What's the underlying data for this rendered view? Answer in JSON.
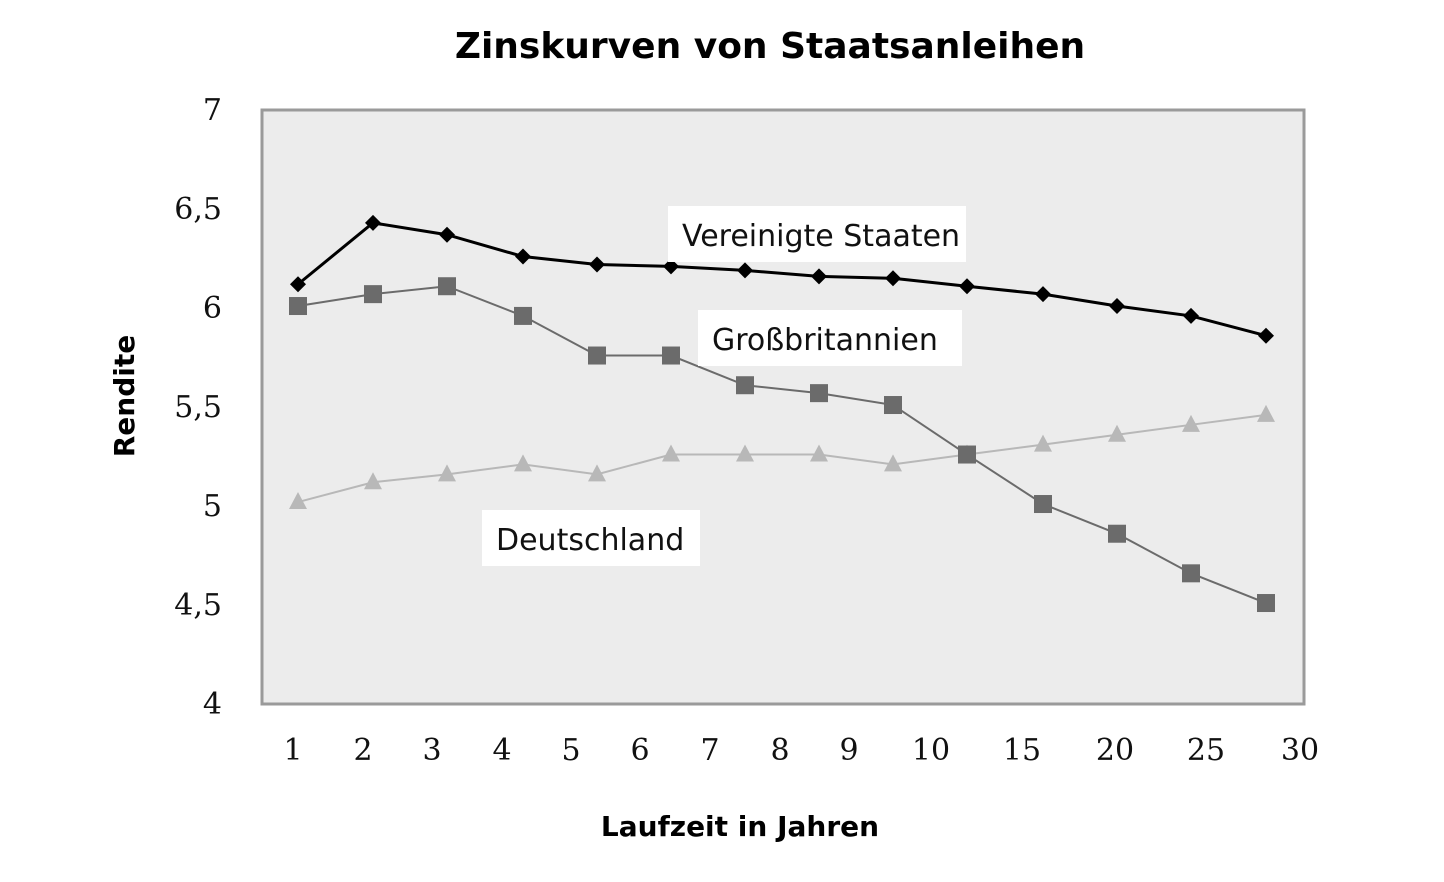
{
  "chart_data": {
    "type": "line",
    "title": "Zinskurven von Staatsanleihen",
    "xlabel": "Laufzeit in Jahren",
    "ylabel": "Rendite",
    "categories": [
      "1",
      "2",
      "3",
      "4",
      "5",
      "6",
      "7",
      "8",
      "9",
      "10",
      "15",
      "20",
      "25",
      "30"
    ],
    "y_ticks": [
      "4",
      "4,5",
      "5",
      "5,5",
      "6",
      "6,5",
      "7"
    ],
    "ylim": [
      4,
      7
    ],
    "grid": false,
    "series": [
      {
        "name": "Vereinigte Staaten",
        "marker": "diamond",
        "color": "#000000",
        "values": [
          6.12,
          6.43,
          6.37,
          6.26,
          6.22,
          6.21,
          6.19,
          6.16,
          6.15,
          6.11,
          6.07,
          6.01,
          5.96,
          5.86
        ]
      },
      {
        "name": "Großbritannien",
        "marker": "square",
        "color": "#6b6b6b",
        "values": [
          6.01,
          6.07,
          6.11,
          5.96,
          5.76,
          5.76,
          5.61,
          5.57,
          5.51,
          5.26,
          5.01,
          4.86,
          4.66,
          4.51
        ]
      },
      {
        "name": "Deutschland",
        "marker": "triangle",
        "color": "#b8b8b8",
        "values": [
          5.02,
          5.12,
          5.16,
          5.21,
          5.16,
          5.26,
          5.26,
          5.26,
          5.21,
          5.26,
          5.31,
          5.36,
          5.41,
          5.46
        ]
      }
    ]
  },
  "colors": {
    "plot_background": "#ececec",
    "plot_border": "#9a9a9a"
  }
}
